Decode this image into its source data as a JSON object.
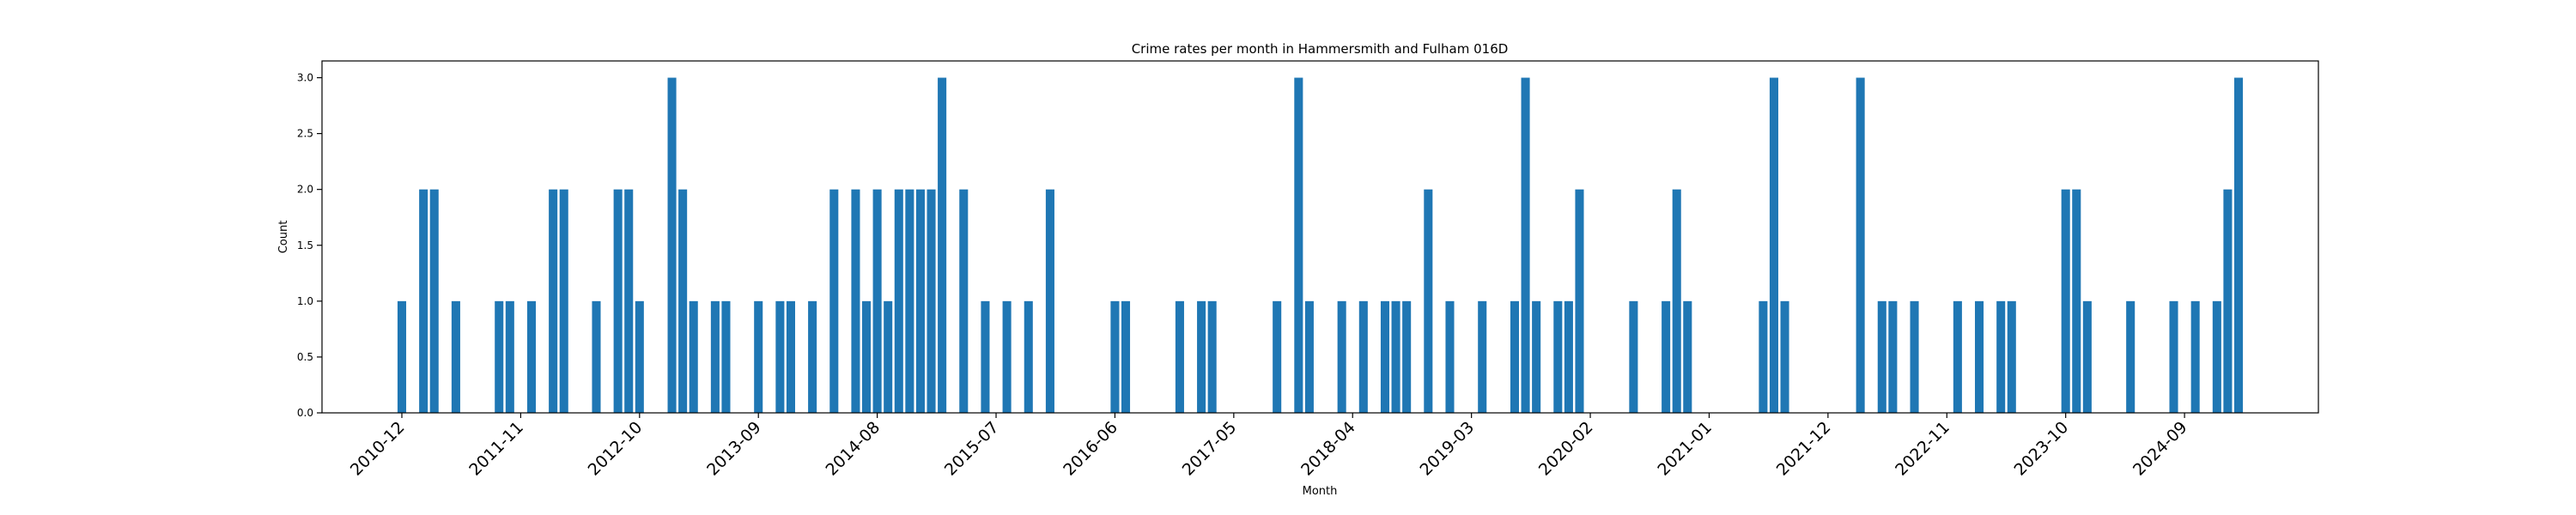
{
  "chart_data": {
    "type": "bar",
    "title": "Crime rates per month in Hammersmith and Fulham 016D",
    "xlabel": "Month",
    "ylabel": "Count",
    "ylim": [
      0,
      3.15
    ],
    "y_ticks": [
      "0.0",
      "0.5",
      "1.0",
      "1.5",
      "2.0",
      "2.5",
      "3.0"
    ],
    "x_tick_labels": [
      "2010-12",
      "2011-11",
      "2012-10",
      "2013-09",
      "2014-08",
      "2015-07",
      "2016-06",
      "2017-05",
      "2018-04",
      "2019-03",
      "2020-02",
      "2021-01",
      "2021-12",
      "2022-11",
      "2023-10",
      "2024-09"
    ],
    "bar_color": "#1f77b4",
    "grid": false,
    "points": [
      {
        "x": "2010-12",
        "y": 1
      },
      {
        "x": "2011-02",
        "y": 2
      },
      {
        "x": "2011-03",
        "y": 2
      },
      {
        "x": "2011-05",
        "y": 1
      },
      {
        "x": "2011-09",
        "y": 1
      },
      {
        "x": "2011-10",
        "y": 1
      },
      {
        "x": "2011-12",
        "y": 1
      },
      {
        "x": "2012-02",
        "y": 2
      },
      {
        "x": "2012-03",
        "y": 2
      },
      {
        "x": "2012-06",
        "y": 1
      },
      {
        "x": "2012-08",
        "y": 2
      },
      {
        "x": "2012-09",
        "y": 2
      },
      {
        "x": "2012-10",
        "y": 1
      },
      {
        "x": "2013-01",
        "y": 3
      },
      {
        "x": "2013-02",
        "y": 2
      },
      {
        "x": "2013-03",
        "y": 1
      },
      {
        "x": "2013-05",
        "y": 1
      },
      {
        "x": "2013-06",
        "y": 1
      },
      {
        "x": "2013-09",
        "y": 1
      },
      {
        "x": "2013-11",
        "y": 1
      },
      {
        "x": "2013-12",
        "y": 1
      },
      {
        "x": "2014-02",
        "y": 1
      },
      {
        "x": "2014-04",
        "y": 2
      },
      {
        "x": "2014-06",
        "y": 2
      },
      {
        "x": "2014-07",
        "y": 1
      },
      {
        "x": "2014-08",
        "y": 2
      },
      {
        "x": "2014-09",
        "y": 1
      },
      {
        "x": "2014-10",
        "y": 2
      },
      {
        "x": "2014-11",
        "y": 2
      },
      {
        "x": "2014-12",
        "y": 2
      },
      {
        "x": "2015-01",
        "y": 2
      },
      {
        "x": "2015-02",
        "y": 3
      },
      {
        "x": "2015-04",
        "y": 2
      },
      {
        "x": "2015-06",
        "y": 1
      },
      {
        "x": "2015-08",
        "y": 1
      },
      {
        "x": "2015-10",
        "y": 1
      },
      {
        "x": "2015-12",
        "y": 2
      },
      {
        "x": "2016-06",
        "y": 1
      },
      {
        "x": "2016-07",
        "y": 1
      },
      {
        "x": "2016-12",
        "y": 1
      },
      {
        "x": "2017-02",
        "y": 1
      },
      {
        "x": "2017-03",
        "y": 1
      },
      {
        "x": "2017-09",
        "y": 1
      },
      {
        "x": "2017-11",
        "y": 3
      },
      {
        "x": "2017-12",
        "y": 1
      },
      {
        "x": "2018-03",
        "y": 1
      },
      {
        "x": "2018-05",
        "y": 1
      },
      {
        "x": "2018-07",
        "y": 1
      },
      {
        "x": "2018-08",
        "y": 1
      },
      {
        "x": "2018-09",
        "y": 1
      },
      {
        "x": "2018-11",
        "y": 2
      },
      {
        "x": "2019-01",
        "y": 1
      },
      {
        "x": "2019-04",
        "y": 1
      },
      {
        "x": "2019-07",
        "y": 1
      },
      {
        "x": "2019-08",
        "y": 3
      },
      {
        "x": "2019-09",
        "y": 1
      },
      {
        "x": "2019-11",
        "y": 1
      },
      {
        "x": "2019-12",
        "y": 1
      },
      {
        "x": "2020-01",
        "y": 2
      },
      {
        "x": "2020-06",
        "y": 1
      },
      {
        "x": "2020-09",
        "y": 1
      },
      {
        "x": "2020-10",
        "y": 2
      },
      {
        "x": "2020-11",
        "y": 1
      },
      {
        "x": "2021-06",
        "y": 1
      },
      {
        "x": "2021-07",
        "y": 3
      },
      {
        "x": "2021-08",
        "y": 1
      },
      {
        "x": "2022-03",
        "y": 3
      },
      {
        "x": "2022-05",
        "y": 1
      },
      {
        "x": "2022-06",
        "y": 1
      },
      {
        "x": "2022-08",
        "y": 1
      },
      {
        "x": "2022-12",
        "y": 1
      },
      {
        "x": "2023-02",
        "y": 1
      },
      {
        "x": "2023-04",
        "y": 1
      },
      {
        "x": "2023-05",
        "y": 1
      },
      {
        "x": "2023-10",
        "y": 2
      },
      {
        "x": "2023-11",
        "y": 2
      },
      {
        "x": "2023-12",
        "y": 1
      },
      {
        "x": "2024-04",
        "y": 1
      },
      {
        "x": "2024-08",
        "y": 1
      },
      {
        "x": "2024-10",
        "y": 1
      },
      {
        "x": "2024-12",
        "y": 1
      },
      {
        "x": "2025-01",
        "y": 2
      },
      {
        "x": "2025-02",
        "y": 3
      }
    ]
  }
}
